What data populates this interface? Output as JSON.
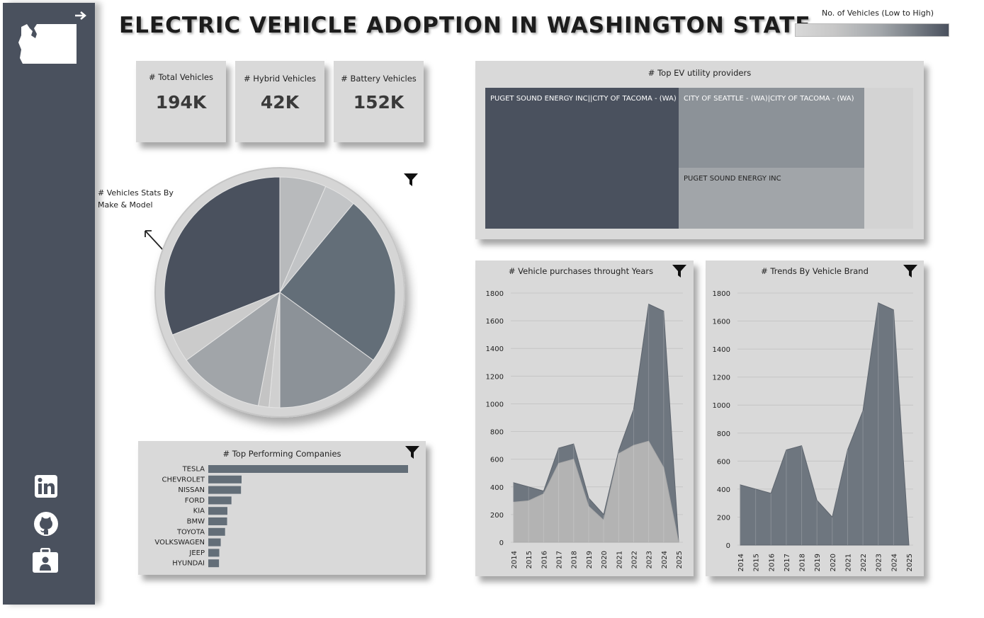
{
  "title": "ELECTRIC VEHICLE ADOPTION IN WASHINGTON STATE",
  "legend": {
    "title": "No. of Vehicles (Low to High)"
  },
  "kpis": [
    {
      "label": "# Total Vehicles",
      "value": "194K"
    },
    {
      "label": "# Hybrid Vehicles",
      "value": "42K"
    },
    {
      "label": "# Battery Vehicles",
      "value": "152K"
    }
  ],
  "pie": {
    "title_line1": "# Vehicles Stats  By",
    "title_line2": "Make & Model"
  },
  "treemap": {
    "title": "# Top EV utility providers",
    "cells": [
      {
        "label": "PUGET SOUND ENERGY INC||CITY OF TACOMA - (WA)"
      },
      {
        "label": "CITY OF SEATTLE - (WA)|CITY OF TACOMA - (WA)"
      },
      {
        "label": "PUGET SOUND ENERGY INC"
      }
    ]
  },
  "chart_data": [
    {
      "type": "pie",
      "title": "# Vehicles Stats By Make & Model",
      "series": [
        {
          "name": "slice-1",
          "values": [
            6.5
          ]
        },
        {
          "name": "slice-2",
          "values": [
            4.5
          ]
        },
        {
          "name": "slice-3",
          "values": [
            24
          ]
        },
        {
          "name": "slice-4",
          "values": [
            15
          ]
        },
        {
          "name": "slice-5",
          "values": [
            1.5
          ]
        },
        {
          "name": "slice-6",
          "values": [
            1.5
          ]
        },
        {
          "name": "slice-7",
          "values": [
            12
          ]
        },
        {
          "name": "slice-8",
          "values": [
            4
          ]
        },
        {
          "name": "slice-9",
          "values": [
            31
          ]
        }
      ]
    },
    {
      "type": "bar",
      "title": "# Top Performing Companies",
      "categories": [
        "TESLA",
        "CHEVROLET",
        "NISSAN",
        "FORD",
        "KIA",
        "BMW",
        "TOYOTA",
        "VOLKSWAGEN",
        "JEEP",
        "HYUNDAI"
      ],
      "values": [
        6900,
        1150,
        1130,
        800,
        660,
        650,
        580,
        430,
        380,
        370
      ]
    },
    {
      "type": "area",
      "title": "# Vehicle purchases throught Years",
      "x": [
        "2014",
        "2015",
        "2016",
        "2017",
        "2018",
        "2019",
        "2020",
        "2021",
        "2022",
        "2023",
        "2024",
        "2025"
      ],
      "series": [
        {
          "name": "Total",
          "values": [
            430,
            400,
            370,
            680,
            710,
            320,
            200,
            660,
            960,
            1720,
            1670,
            0
          ]
        },
        {
          "name": "Hybrid",
          "values": [
            290,
            300,
            350,
            570,
            600,
            260,
            160,
            640,
            700,
            730,
            540,
            0
          ]
        }
      ],
      "ylim": [
        0,
        1800
      ],
      "yticks": [
        0,
        200,
        400,
        600,
        800,
        1000,
        1200,
        1400,
        1600,
        1800
      ]
    },
    {
      "type": "area",
      "title": "# Trends By Vehicle Brand",
      "x": [
        "2014",
        "2015",
        "2016",
        "2017",
        "2018",
        "2019",
        "2020",
        "2021",
        "2022",
        "2023",
        "2024",
        "2025"
      ],
      "series": [
        {
          "name": "Brand",
          "values": [
            430,
            400,
            370,
            680,
            710,
            320,
            200,
            680,
            960,
            1730,
            1680,
            0
          ]
        }
      ],
      "ylim": [
        0,
        1800
      ],
      "yticks": [
        0,
        200,
        400,
        600,
        800,
        1000,
        1200,
        1400,
        1600,
        1800
      ]
    }
  ],
  "colors": {
    "dark": "#4a515e",
    "mid": "#636e78",
    "light": "#8c9298",
    "pale": "#a1a5a9",
    "paler": "#b8babc",
    "card": "#d9d9d9",
    "area": "#6e767f",
    "area_light": "#b3b3b3"
  }
}
